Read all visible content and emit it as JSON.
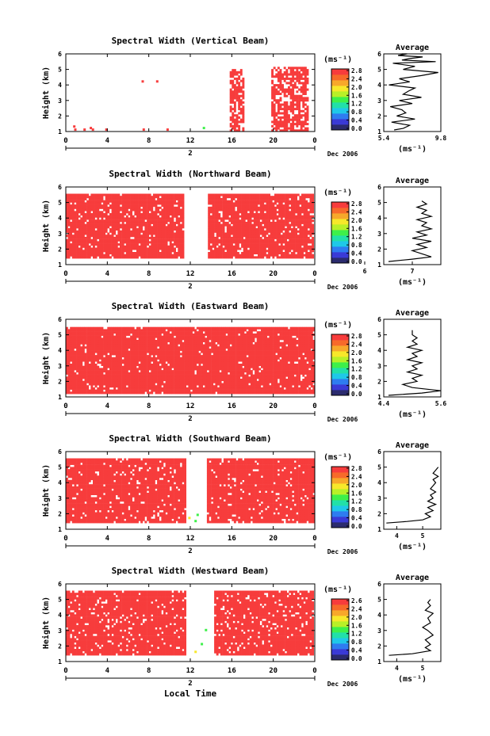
{
  "figure": {
    "x_axis_title": "Local Time",
    "date_label": "Dec 2006",
    "day_label": "2",
    "colorbar_unit": "(ms⁻¹)",
    "colorbar_ticks": [
      "0.0",
      "0.4",
      "0.8",
      "1.2",
      "1.6",
      "2.0",
      "2.4",
      "2.8"
    ],
    "x_ticks": [
      "0",
      "4",
      "8",
      "12",
      "16",
      "20",
      "0"
    ],
    "y_ticks": [
      "1",
      "2",
      "3",
      "4",
      "5",
      "6"
    ],
    "y_label": "Height (km)",
    "avg_title": "Average",
    "avg_unit": "(ms⁻¹)",
    "colors": {
      "red": "#f73c3c",
      "colormap": [
        "#2b2b6e",
        "#3a3ad6",
        "#2e7cf0",
        "#1fc8e8",
        "#22e0a8",
        "#3ef04a",
        "#b8f028",
        "#f7e82a",
        "#f7a82a",
        "#f76a2a",
        "#f73c3c"
      ]
    }
  },
  "chart_data": [
    {
      "type": "heatmap",
      "title": "Spectral Width (Vertical Beam)",
      "xlabel": "",
      "ylabel": "Height (km)",
      "xlim": [
        0,
        24
      ],
      "ylim": [
        1,
        6
      ],
      "colorbar": {
        "label": "(ms⁻¹)",
        "range": [
          0.0,
          2.8
        ],
        "ticks": [
          0.0,
          0.4,
          0.8,
          1.2,
          1.6,
          2.0,
          2.4,
          2.8
        ]
      },
      "filled_regions": [
        [
          15.8,
          17.0,
          1.0,
          5.0
        ],
        [
          19.8,
          23.2,
          1.0,
          5.1
        ]
      ],
      "region_density": 0.72,
      "scattered_points": [
        [
          0.7,
          1.4
        ],
        [
          0.8,
          1.2
        ],
        [
          1.7,
          1.2
        ],
        [
          2.3,
          1.3
        ],
        [
          2.5,
          1.2
        ],
        [
          3.8,
          1.2
        ],
        [
          7.3,
          4.3
        ],
        [
          8.7,
          4.3
        ],
        [
          7.4,
          1.2
        ],
        [
          9.7,
          1.2
        ],
        [
          13.2,
          1.3
        ]
      ],
      "average_profile": {
        "xlim": [
          5.4,
          9.8
        ],
        "x_ticks": [
          "5.4",
          "9.8"
        ],
        "x": [
          6.2,
          6.9,
          7.4,
          6.0,
          7.8,
          6.4,
          7.1,
          6.8,
          5.9,
          7.6,
          6.6,
          8.3,
          6.9,
          7.3,
          7.8,
          5.8,
          7.4,
          6.6,
          8.3,
          9.6,
          6.9,
          7.8,
          6.1,
          9.4,
          6.8,
          7.4,
          8.4,
          6.5,
          7.2,
          6.8
        ],
        "y": [
          1.1,
          1.2,
          1.4,
          1.6,
          1.8,
          2.0,
          2.2,
          2.4,
          2.6,
          2.8,
          3.0,
          3.2,
          3.4,
          3.6,
          3.8,
          4.0,
          4.2,
          4.4,
          4.6,
          4.8,
          5.0,
          5.2,
          5.4,
          5.5,
          5.6,
          5.7,
          5.8,
          5.9,
          6.0,
          6.0
        ]
      }
    },
    {
      "type": "heatmap",
      "title": "Spectral Width (Northward Beam)",
      "xlabel": "",
      "ylabel": "Height (km)",
      "xlim": [
        0,
        24
      ],
      "ylim": [
        1,
        6
      ],
      "colorbar": {
        "label": "(ms⁻¹)",
        "range": [
          0.0,
          2.8
        ],
        "ticks": [
          0.0,
          0.4,
          0.8,
          1.2,
          1.6,
          2.0,
          2.4,
          2.8
        ]
      },
      "filled_regions": [
        [
          0.0,
          11.3,
          1.4,
          5.5
        ],
        [
          13.7,
          23.8,
          1.4,
          5.5
        ]
      ],
      "region_density": 0.92,
      "scattered_points": [],
      "average_profile": {
        "xlim": [
          6.4,
          7.6
        ],
        "x_ticks": [
          "6",
          "7"
        ],
        "x": [
          6.5,
          7.0,
          7.4,
          7.2,
          7.0,
          7.3,
          7.1,
          7.4,
          7.0,
          7.3,
          7.1,
          7.4,
          7.2,
          7.3,
          7.1,
          7.4,
          7.2,
          7.3,
          7.1,
          7.3,
          7.2
        ],
        "y": [
          1.2,
          1.35,
          1.5,
          1.7,
          1.9,
          2.1,
          2.3,
          2.5,
          2.7,
          2.9,
          3.1,
          3.3,
          3.5,
          3.7,
          3.9,
          4.1,
          4.3,
          4.5,
          4.7,
          4.9,
          5.1
        ]
      }
    },
    {
      "type": "heatmap",
      "title": "Spectral Width (Eastward Beam)",
      "xlabel": "",
      "ylabel": "Height (km)",
      "xlim": [
        0,
        24
      ],
      "ylim": [
        1,
        6
      ],
      "colorbar": {
        "label": "(ms⁻¹)",
        "range": [
          0.0,
          2.8
        ],
        "ticks": [
          0.0,
          0.4,
          0.8,
          1.2,
          1.6,
          2.0,
          2.4,
          2.8
        ]
      },
      "filled_regions": [
        [
          0.0,
          23.8,
          1.2,
          5.5
        ]
      ],
      "region_density": 0.95,
      "scattered_points": [],
      "average_profile": {
        "xlim": [
          4.4,
          5.6
        ],
        "x_ticks": [
          "4.4",
          "5.6"
        ],
        "x": [
          4.5,
          5.2,
          5.6,
          5.0,
          4.8,
          5.1,
          5.0,
          5.2,
          4.9,
          5.1,
          5.0,
          5.2,
          4.9,
          5.1,
          5.0,
          5.2,
          4.9,
          5.1,
          5.0,
          5.1,
          5.0,
          5.0
        ],
        "y": [
          1.1,
          1.25,
          1.4,
          1.6,
          1.8,
          2.0,
          2.2,
          2.4,
          2.6,
          2.8,
          3.0,
          3.2,
          3.4,
          3.6,
          3.8,
          4.0,
          4.2,
          4.4,
          4.6,
          4.8,
          5.0,
          5.3
        ]
      }
    },
    {
      "type": "heatmap",
      "title": "Spectral Width (Southward Beam)",
      "xlabel": "",
      "ylabel": "Height (km)",
      "xlim": [
        0,
        24
      ],
      "ylim": [
        1,
        6
      ],
      "colorbar": {
        "label": "(ms⁻¹)",
        "range": [
          0.0,
          2.8
        ],
        "ticks": [
          0.0,
          0.4,
          0.8,
          1.2,
          1.6,
          2.0,
          2.4,
          2.8
        ]
      },
      "filled_regions": [
        [
          0.0,
          11.5,
          1.4,
          5.5
        ],
        [
          13.6,
          23.8,
          1.4,
          5.5
        ]
      ],
      "region_density": 0.92,
      "scattered_points": [
        [
          11.8,
          1.8
        ],
        [
          12.6,
          2.0
        ],
        [
          12.4,
          1.6
        ]
      ],
      "average_profile": {
        "xlim": [
          3.5,
          5.7
        ],
        "x_ticks": [
          "4",
          "5"
        ],
        "x": [
          3.6,
          4.4,
          5.0,
          5.3,
          5.1,
          5.4,
          5.2,
          5.5,
          5.2,
          5.4,
          5.3,
          5.5,
          5.3,
          5.4,
          5.5,
          5.4,
          5.6,
          5.4,
          5.5,
          5.6
        ],
        "y": [
          1.4,
          1.5,
          1.6,
          1.8,
          2.0,
          2.2,
          2.4,
          2.6,
          2.8,
          3.0,
          3.2,
          3.4,
          3.6,
          3.8,
          4.0,
          4.2,
          4.4,
          4.6,
          4.8,
          5.0
        ]
      }
    },
    {
      "type": "heatmap",
      "title": "Spectral Width (Westward Beam)",
      "xlabel": "Local Time",
      "ylabel": "Height (km)",
      "xlim": [
        0,
        24
      ],
      "ylim": [
        1,
        6
      ],
      "colorbar": {
        "label": "(ms⁻¹)",
        "range": [
          0.0,
          2.6
        ],
        "ticks": [
          0.0,
          0.4,
          0.8,
          1.2,
          1.6,
          2.0,
          2.4,
          2.6
        ]
      },
      "filled_regions": [
        [
          0.0,
          11.5,
          1.4,
          5.5
        ],
        [
          14.3,
          23.8,
          1.4,
          5.5
        ]
      ],
      "region_density": 0.9,
      "scattered_points": [
        [
          12.4,
          1.7
        ],
        [
          13.0,
          2.2
        ],
        [
          13.4,
          3.1
        ]
      ],
      "average_profile": {
        "xlim": [
          3.5,
          5.7
        ],
        "x_ticks": [
          "4",
          "5"
        ],
        "x": [
          3.7,
          4.6,
          5.3,
          5.1,
          5.3,
          5.1,
          5.4,
          5.2,
          5.0,
          5.3,
          5.2,
          5.4,
          5.1,
          5.3,
          5.2,
          5.3
        ],
        "y": [
          1.4,
          1.5,
          1.7,
          1.9,
          2.1,
          2.4,
          2.7,
          3.0,
          3.2,
          3.5,
          3.8,
          4.1,
          4.3,
          4.6,
          4.8,
          5.0
        ]
      }
    }
  ]
}
